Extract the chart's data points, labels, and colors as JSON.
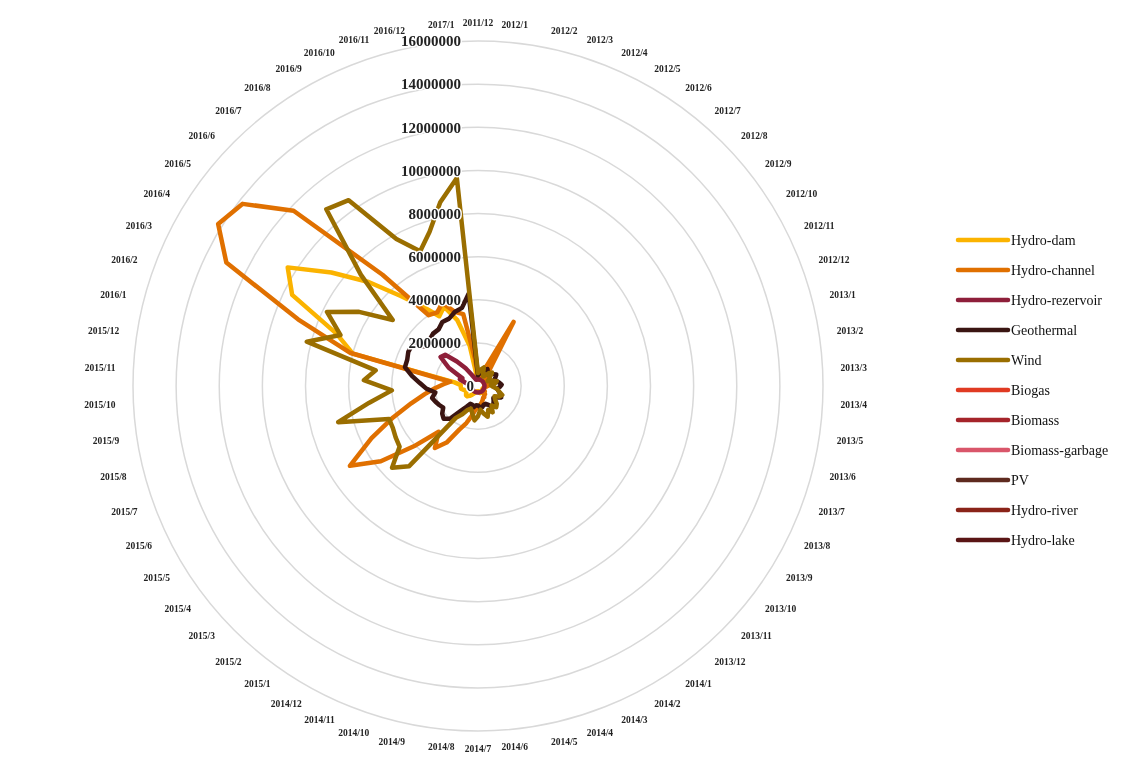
{
  "chart_data": {
    "type": "radar",
    "categories": [
      "2011/12",
      "2012/1",
      "2012/2",
      "2012/3",
      "2012/4",
      "2012/5",
      "2012/6",
      "2012/7",
      "2012/8",
      "2012/9",
      "2012/10",
      "2012/11",
      "2012/12",
      "2013/1",
      "2013/2",
      "2013/3",
      "2013/4",
      "2013/5",
      "2013/6",
      "2013/7",
      "2013/8",
      "2013/9",
      "2013/10",
      "2013/11",
      "2013/12",
      "2014/1",
      "2014/2",
      "2014/3",
      "2014/4",
      "2014/5",
      "2014/6",
      "2014/7",
      "2014/8",
      "2014/9",
      "2014/10",
      "2014/11",
      "2014/12",
      "2015/1",
      "2015/2",
      "2015/3",
      "2015/4",
      "2015/5",
      "2015/6",
      "2015/7",
      "2015/8",
      "2015/9",
      "2015/10",
      "2015/11",
      "2015/12",
      "2016/1",
      "2016/2",
      "2016/3",
      "2016/4",
      "2016/5",
      "2016/6",
      "2016/7",
      "2016/8",
      "2016/9",
      "2016/10",
      "2016/11",
      "2016/12",
      "2017/1"
    ],
    "ylim": [
      0,
      16000000
    ],
    "yticks": [
      0,
      2000000,
      4000000,
      6000000,
      8000000,
      10000000,
      12000000,
      14000000,
      16000000
    ],
    "grid": true,
    "legend": "right",
    "marker": "none",
    "line_style": "solid",
    "series": [
      {
        "name": "Hydro-dam",
        "color": "#fbb300",
        "values": [
          300000,
          300000,
          350000,
          400000,
          450000,
          500000,
          450000,
          400000,
          350000,
          300000,
          300000,
          300000,
          300000,
          300000,
          350000,
          400000,
          400000,
          350000,
          300000,
          250000,
          250000,
          250000,
          250000,
          300000,
          300000,
          300000,
          300000,
          350000,
          350000,
          300000,
          250000,
          250000,
          250000,
          250000,
          300000,
          350000,
          400000,
          500000,
          600000,
          700000,
          700000,
          650000,
          600000,
          600000,
          700000,
          800000,
          800000,
          800000,
          1100000,
          6000000,
          7000000,
          9600000,
          10400000,
          8600000,
          7000000,
          5500000,
          4500000,
          3700000,
          4000000,
          3200000,
          1900000,
          400000
        ]
      },
      {
        "name": "Hydro-channel",
        "color": "#e07000",
        "values": [
          500000,
          400000,
          600000,
          800000,
          1000000,
          3400000,
          1000000,
          600000,
          500000,
          400000,
          500000,
          600000,
          500000,
          400000,
          400000,
          500000,
          400000,
          300000,
          300000,
          300000,
          300000,
          300000,
          400000,
          400000,
          500000,
          500000,
          600000,
          600000,
          700000,
          800000,
          900000,
          1000000,
          1100000,
          1400000,
          1800000,
          2200000,
          3000000,
          3500000,
          2800000,
          4000000,
          5700000,
          7000000,
          5500000,
          4200000,
          3200000,
          2500000,
          2000000,
          1600000,
          1300000,
          6100000,
          8900000,
          13000000,
          14200000,
          13800000,
          11800000,
          6800000,
          4000000,
          3900000,
          4200000,
          3600000,
          3400000,
          1200000
        ]
      },
      {
        "name": "Hydro-rezervoir",
        "color": "#8e1f3a",
        "values": [
          300000,
          300000,
          300000,
          320000,
          320000,
          300000,
          300000,
          300000,
          300000,
          300000,
          300000,
          300000,
          300000,
          300000,
          300000,
          300000,
          300000,
          300000,
          300000,
          300000,
          300000,
          300000,
          300000,
          300000,
          300000,
          300000,
          300000,
          300000,
          300000,
          300000,
          300000,
          300000,
          300000,
          300000,
          300000,
          300000,
          300000,
          300000,
          300000,
          300000,
          300000,
          300000,
          300000,
          300000,
          300000,
          300000,
          300000,
          300000,
          400000,
          600000,
          900000,
          800000,
          1600000,
          2200000,
          2100000,
          1500000,
          1000000,
          600000,
          400000,
          300000,
          300000,
          300000
        ]
      },
      {
        "name": "Geothermal",
        "color": "#3a1512",
        "values": [
          500000,
          600000,
          600000,
          700000,
          800000,
          900000,
          800000,
          700000,
          800000,
          900000,
          1000000,
          900000,
          800000,
          900000,
          1000000,
          1100000,
          1000000,
          900000,
          1000000,
          1100000,
          1200000,
          1000000,
          900000,
          1000000,
          1100000,
          1200000,
          1000000,
          900000,
          900000,
          1000000,
          1000000,
          900000,
          900000,
          1000000,
          900000,
          900000,
          1100000,
          1400000,
          2000000,
          2200000,
          2100000,
          1900000,
          2000000,
          2100000,
          2200000,
          2000000,
          2400000,
          2700000,
          3100000,
          3500000,
          3500000,
          3600000,
          3600000,
          3000000,
          3100000,
          3200000,
          3200000,
          3400000,
          3400000,
          3600000,
          3700000,
          4300000
        ]
      },
      {
        "name": "Wind",
        "color": "#9a6e00",
        "values": [
          600000,
          700000,
          800000,
          900000,
          600000,
          500000,
          600000,
          800000,
          900000,
          700000,
          600000,
          500000,
          700000,
          900000,
          800000,
          600000,
          700000,
          900000,
          1000000,
          1200000,
          1100000,
          900000,
          1000000,
          1200000,
          1300000,
          1100000,
          1400000,
          1200000,
          1500000,
          1300000,
          1100000,
          1400000,
          1600000,
          1300000,
          1100000,
          1200000,
          1500000,
          1800000,
          4900000,
          5500000,
          4600000,
          4500000,
          4400000,
          4400000,
          6700000,
          5100000,
          4000000,
          5300000,
          4800000,
          8200000,
          6800000,
          7800000,
          6500000,
          5000000,
          7500000,
          10800000,
          10500000,
          7800000,
          6800000,
          7500000,
          8700000,
          9700000
        ]
      },
      {
        "name": "Biogas",
        "color": "#e03a22",
        "values": [
          null,
          null,
          null,
          null,
          null,
          null,
          null,
          null,
          null,
          null,
          null,
          null,
          null,
          null,
          null,
          null,
          null,
          null,
          null,
          null,
          null,
          null,
          null,
          null,
          null,
          null,
          null,
          null,
          null,
          null,
          null,
          null,
          null,
          null,
          null,
          null,
          null,
          null,
          null,
          null,
          null,
          null,
          null,
          null,
          null,
          null,
          null,
          null,
          null,
          null,
          null,
          null,
          null,
          null,
          null,
          null,
          null,
          null,
          null,
          null,
          null,
          null
        ]
      },
      {
        "name": "Biomass",
        "color": "#a5242a",
        "values": [
          null,
          null,
          null,
          null,
          null,
          null,
          null,
          null,
          null,
          null,
          null,
          null,
          null,
          null,
          null,
          null,
          null,
          null,
          null,
          null,
          null,
          null,
          null,
          null,
          null,
          null,
          null,
          null,
          null,
          null,
          null,
          null,
          null,
          null,
          null,
          null,
          null,
          null,
          null,
          null,
          null,
          null,
          null,
          null,
          null,
          null,
          null,
          null,
          null,
          null,
          null,
          null,
          null,
          null,
          null,
          null,
          null,
          null,
          null,
          null,
          null,
          null
        ]
      },
      {
        "name": "Biomass-garbage",
        "color": "#d9566a",
        "values": [
          null,
          null,
          null,
          null,
          null,
          null,
          null,
          null,
          null,
          null,
          null,
          null,
          null,
          null,
          null,
          null,
          null,
          null,
          null,
          null,
          null,
          null,
          null,
          null,
          null,
          null,
          null,
          null,
          null,
          null,
          null,
          null,
          null,
          null,
          null,
          null,
          null,
          null,
          null,
          null,
          null,
          null,
          null,
          null,
          null,
          null,
          null,
          null,
          null,
          null,
          null,
          null,
          null,
          null,
          null,
          null,
          null,
          null,
          null,
          null,
          null,
          null
        ]
      },
      {
        "name": "PV",
        "color": "#5e2a1f",
        "values": [
          null,
          null,
          null,
          null,
          null,
          null,
          null,
          null,
          null,
          null,
          null,
          null,
          null,
          null,
          null,
          null,
          null,
          null,
          null,
          null,
          null,
          null,
          null,
          null,
          null,
          null,
          null,
          null,
          null,
          null,
          null,
          null,
          null,
          null,
          null,
          null,
          null,
          null,
          null,
          null,
          null,
          null,
          null,
          null,
          null,
          null,
          null,
          null,
          null,
          null,
          null,
          null,
          null,
          null,
          null,
          null,
          null,
          null,
          null,
          null,
          null,
          null
        ]
      },
      {
        "name": "Hydro-river",
        "color": "#8a2318",
        "values": [
          null,
          null,
          null,
          null,
          null,
          null,
          null,
          null,
          null,
          null,
          null,
          null,
          null,
          null,
          null,
          null,
          null,
          null,
          null,
          null,
          null,
          null,
          null,
          null,
          null,
          null,
          null,
          null,
          null,
          null,
          null,
          null,
          null,
          null,
          null,
          null,
          null,
          null,
          null,
          null,
          null,
          null,
          null,
          null,
          null,
          null,
          null,
          null,
          null,
          null,
          null,
          null,
          null,
          null,
          null,
          null,
          null,
          null,
          null,
          null,
          null,
          null
        ]
      },
      {
        "name": "Hydro-lake",
        "color": "#5a1515",
        "values": [
          null,
          null,
          null,
          null,
          null,
          null,
          null,
          null,
          null,
          null,
          null,
          null,
          null,
          null,
          null,
          null,
          null,
          null,
          null,
          null,
          null,
          null,
          null,
          null,
          null,
          null,
          null,
          null,
          null,
          null,
          null,
          null,
          null,
          null,
          null,
          null,
          null,
          null,
          null,
          null,
          null,
          null,
          null,
          null,
          null,
          null,
          null,
          null,
          null,
          null,
          null,
          null,
          null,
          null,
          null,
          null,
          null,
          null,
          null,
          null,
          null,
          null
        ]
      }
    ]
  }
}
